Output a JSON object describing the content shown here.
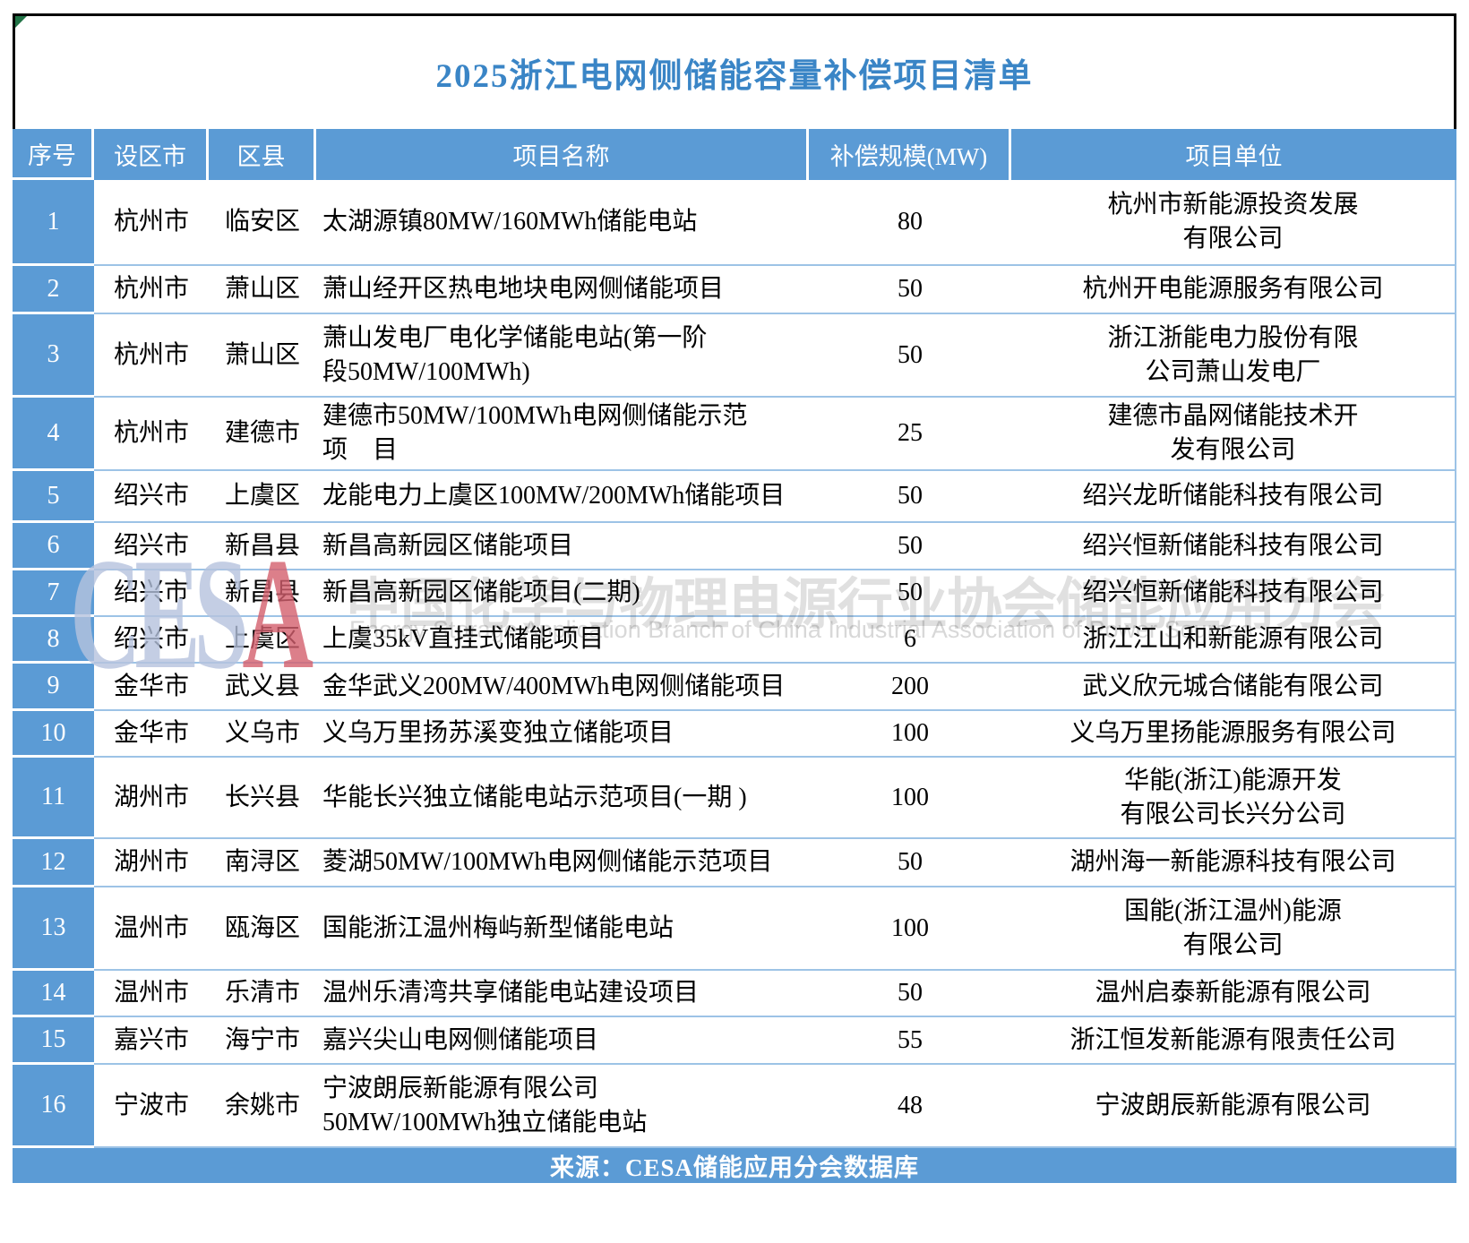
{
  "title": "2025浙江电网侧储能容量补偿项目清单",
  "table": {
    "columns": [
      "序号",
      "设区市",
      "区县",
      "项目名称",
      "补偿规模(MW)",
      "项目单位"
    ],
    "rows": [
      {
        "no": "1",
        "city": "杭州市",
        "district": "临安区",
        "name": "太湖源镇80MW/160MWh储能电站",
        "mw": "80",
        "unit": "杭州市新能源投资发展\n有限公司"
      },
      {
        "no": "2",
        "city": "杭州市",
        "district": "萧山区",
        "name": "萧山经开区热电地块电网侧储能项目",
        "mw": "50",
        "unit": "杭州开电能源服务有限公司"
      },
      {
        "no": "3",
        "city": "杭州市",
        "district": "萧山区",
        "name": "萧山发电厂电化学储能电站(第一阶\n段50MW/100MWh)",
        "mw": "50",
        "unit": "浙江浙能电力股份有限\n公司萧山发电厂"
      },
      {
        "no": "4",
        "city": "杭州市",
        "district": "建德市",
        "name": "建德市50MW/100MWh电网侧储能示范\n项　目",
        "mw": "25",
        "unit": "建德市晶网储能技术开\n发有限公司"
      },
      {
        "no": "5",
        "city": "绍兴市",
        "district": "上虞区",
        "name": "龙能电力上虞区100MW/200MWh储能项目",
        "mw": "50",
        "unit": "绍兴龙昕储能科技有限公司"
      },
      {
        "no": "6",
        "city": "绍兴市",
        "district": "新昌县",
        "name": "新昌高新园区储能项目",
        "mw": "50",
        "unit": "绍兴恒新储能科技有限公司"
      },
      {
        "no": "7",
        "city": "绍兴市",
        "district": "新昌县",
        "name": "新昌高新园区储能项目(二期)",
        "mw": "50",
        "unit": "绍兴恒新储能科技有限公司"
      },
      {
        "no": "8",
        "city": "绍兴市",
        "district": "上虞区",
        "name": "上虞35kV直挂式储能项目",
        "mw": "6",
        "unit": "浙江江山和新能源有限公司"
      },
      {
        "no": "9",
        "city": "金华市",
        "district": "武义县",
        "name": "金华武义200MW/400MWh电网侧储能项目",
        "mw": "200",
        "unit": "武义欣元城合储能有限公司"
      },
      {
        "no": "10",
        "city": "金华市",
        "district": "义乌市",
        "name": "义乌万里扬苏溪变独立储能项目",
        "mw": "100",
        "unit": "义乌万里扬能源服务有限公司"
      },
      {
        "no": "11",
        "city": "湖州市",
        "district": "长兴县",
        "name": "华能长兴独立储能电站示范项目(一期 )",
        "mw": "100",
        "unit": "华能(浙江)能源开发\n有限公司长兴分公司"
      },
      {
        "no": "12",
        "city": "湖州市",
        "district": "南浔区",
        "name": "菱湖50MW/100MWh电网侧储能示范项目",
        "mw": "50",
        "unit": "湖州海一新能源科技有限公司"
      },
      {
        "no": "13",
        "city": "温州市",
        "district": "瓯海区",
        "name": "国能浙江温州梅屿新型储能电站",
        "mw": "100",
        "unit": "国能(浙江温州)能源\n有限公司"
      },
      {
        "no": "14",
        "city": "温州市",
        "district": "乐清市",
        "name": "温州乐清湾共享储能电站建设项目",
        "mw": "50",
        "unit": "温州启泰新能源有限公司"
      },
      {
        "no": "15",
        "city": "嘉兴市",
        "district": "海宁市",
        "name": "嘉兴尖山电网侧储能项目",
        "mw": "55",
        "unit": "浙江恒发新能源有限责任公司"
      },
      {
        "no": "16",
        "city": "宁波市",
        "district": "余姚市",
        "name": "宁波朗辰新能源有限公司\n50MW/100MWh独立储能电站",
        "mw": "48",
        "unit": "宁波朗辰新能源有限公司"
      }
    ]
  },
  "footer": {
    "source": "来源：CESA储能应用分会数据库"
  },
  "watermark": {
    "logo": "CESA",
    "text_cn": "中国化学与物理电源行业协会储能应用分会",
    "text_en": "Energy Storage Application Branch of China Industrial Association of Power Sources"
  },
  "colors": {
    "header_blue": "#5b9bd5",
    "divider_blue": "#9dc3e6",
    "title_blue": "#3a85c6",
    "watermark_logo_blue": "#b6c3de",
    "watermark_logo_red": "#d4606e"
  }
}
